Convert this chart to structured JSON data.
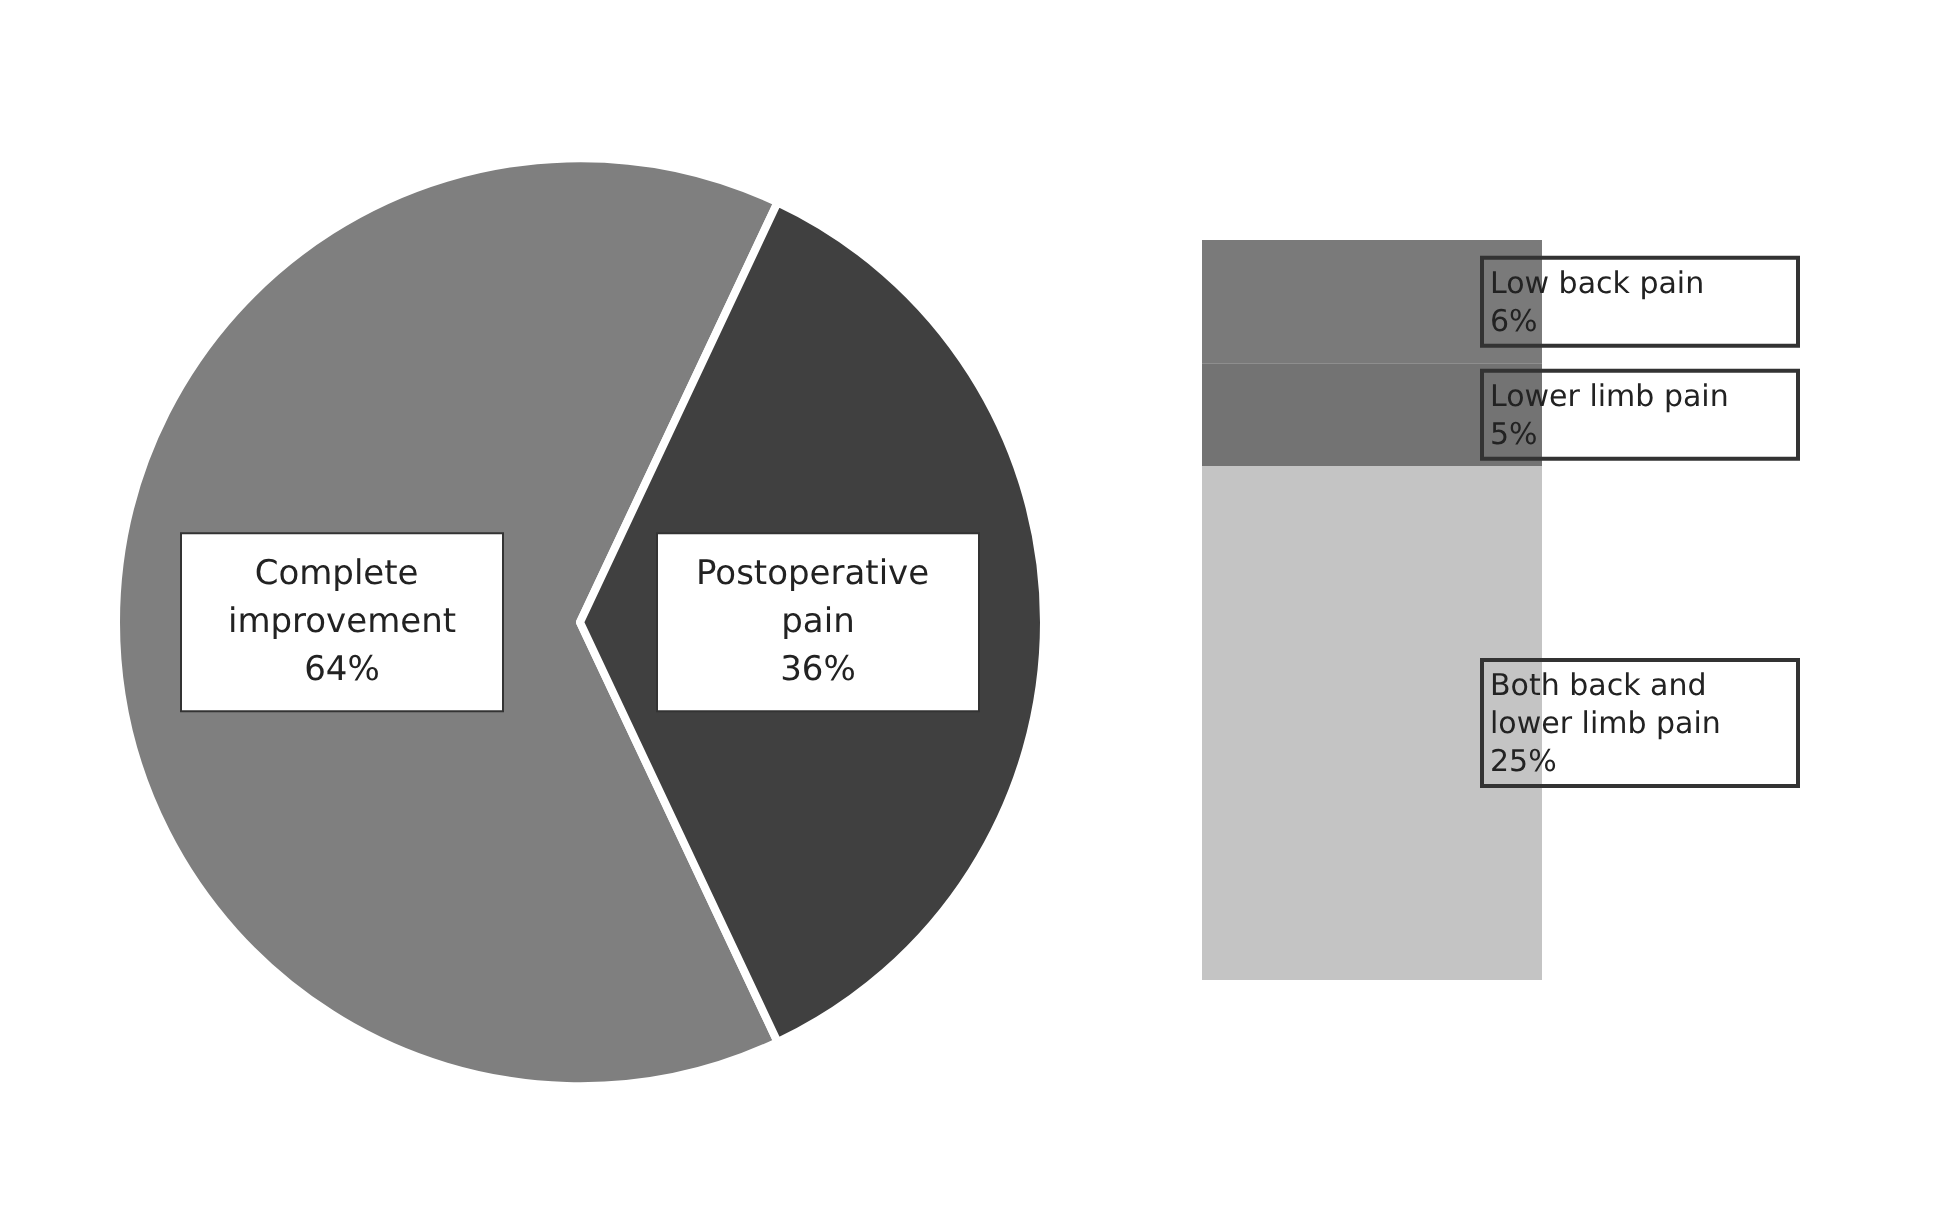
{
  "chart_data": [
    {
      "type": "pie",
      "categories": [
        "Complete improvement",
        "Postoperative pain"
      ],
      "values": [
        64,
        36
      ],
      "colors": [
        "#7f7f7f",
        "#404040"
      ],
      "value_labels": [
        "64%",
        "36%"
      ],
      "legend": false
    },
    {
      "type": "bar",
      "stacked": true,
      "categories": [
        null
      ],
      "tick_labels": false,
      "legend": false,
      "series": [
        {
          "name": "Both back and lower limb pain",
          "color": "#c4c4c4",
          "values": [
            25
          ],
          "value_labels": [
            "25%"
          ]
        },
        {
          "name": "Lower limb pain",
          "color": "#737373",
          "values": [
            5
          ],
          "value_labels": [
            "5%"
          ]
        },
        {
          "name": "Low back pain",
          "color": "#7a7a7a",
          "values": [
            6
          ],
          "value_labels": [
            "6%"
          ]
        }
      ]
    }
  ]
}
